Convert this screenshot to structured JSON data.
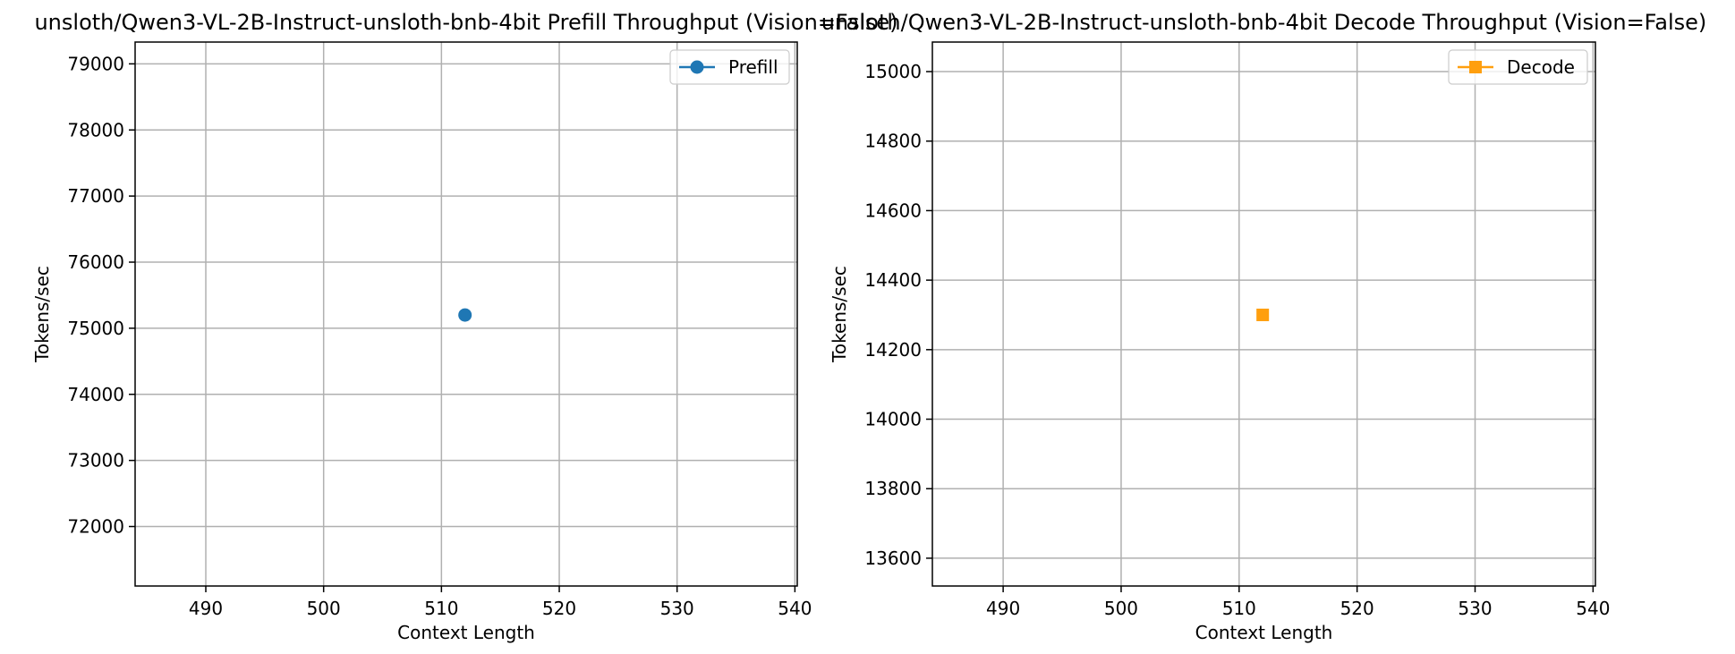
{
  "chart_data": [
    {
      "type": "scatter",
      "title": "unsloth/Qwen3-VL-2B-Instruct-unsloth-bnb-4bit Prefill Throughput (Vision=False)",
      "xlabel": "Context Length",
      "ylabel": "Tokens/sec",
      "xlim": [
        484,
        540.2
      ],
      "ylim": [
        71100,
        79330
      ],
      "xticks": [
        490,
        500,
        510,
        520,
        530,
        540
      ],
      "yticks": [
        72000,
        73000,
        74000,
        75000,
        76000,
        77000,
        78000,
        79000
      ],
      "grid": true,
      "legend_position": "upper right",
      "series": [
        {
          "name": "Prefill",
          "marker": "circle",
          "color": "#1f77b4",
          "x": [
            512
          ],
          "y": [
            75200
          ]
        }
      ]
    },
    {
      "type": "scatter",
      "title": "unsloth/Qwen3-VL-2B-Instruct-unsloth-bnb-4bit Decode Throughput (Vision=False)",
      "xlabel": "Context Length",
      "ylabel": "Tokens/sec",
      "xlim": [
        484,
        540.2
      ],
      "ylim": [
        13520,
        15085
      ],
      "xticks": [
        490,
        500,
        510,
        520,
        530,
        540
      ],
      "yticks": [
        13600,
        13800,
        14000,
        14200,
        14400,
        14600,
        14800,
        15000
      ],
      "grid": true,
      "legend_position": "upper right",
      "series": [
        {
          "name": "Decode",
          "marker": "square",
          "color": "#ff9f0e",
          "x": [
            512
          ],
          "y": [
            14300
          ]
        }
      ]
    }
  ]
}
